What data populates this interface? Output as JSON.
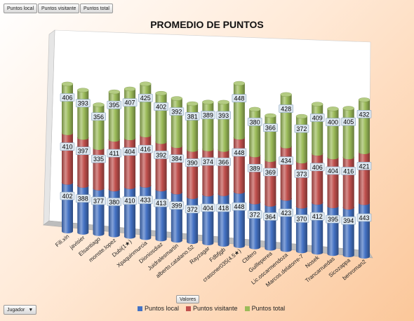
{
  "field_buttons": [
    "Puntos local",
    "Puntos visitante",
    "Puntos total"
  ],
  "values_button": "Valores",
  "filter_dropdown": {
    "label": "Jugador",
    "arrow_icon": "chevron-down-icon"
  },
  "colors": {
    "local": "#4472C4",
    "visitante": "#C0504D",
    "total": "#9BBB59"
  },
  "chart_data": {
    "type": "bar",
    "stacked": true,
    "style": "3d-cylinder",
    "title": "PROMEDIO DE PUNTOS",
    "xlabel": "",
    "ylabel": "",
    "legend_position": "bottom",
    "categories": [
      "Fili.xin",
      "javisier",
      "Elsantiago",
      "monste.lopez",
      "Dubi(1★)",
      "Xpaquinmurcia",
      "Dioniosdiaz",
      "Juidralesmartin",
      "alberto.catalano.52",
      "Rayzagar",
      "Fdbfjgb",
      "crasoner035(4.5★)",
      "Cbfero",
      "Guilleperea",
      "Lic.oscarmendoza",
      "Marcos.delatorre-7",
      "Nosek",
      "Trancarruedas",
      "Sicozappa",
      "benroman2"
    ],
    "series": [
      {
        "name": "Puntos local",
        "values": [
          402,
          388,
          377,
          380,
          410,
          433,
          413,
          399,
          372,
          404,
          418,
          448,
          372,
          364,
          423,
          370,
          412,
          395,
          394,
          443
        ]
      },
      {
        "name": "Puntos visitante",
        "values": [
          410,
          397,
          335,
          411,
          404,
          416,
          392,
          384,
          390,
          374,
          366,
          448,
          389,
          369,
          434,
          373,
          406,
          404,
          416,
          421
        ]
      },
      {
        "name": "Puntos total",
        "values": [
          406,
          393,
          356,
          395,
          407,
          425,
          402,
          392,
          381,
          389,
          393,
          448,
          380,
          366,
          428,
          372,
          409,
          400,
          405,
          432
        ]
      }
    ]
  }
}
